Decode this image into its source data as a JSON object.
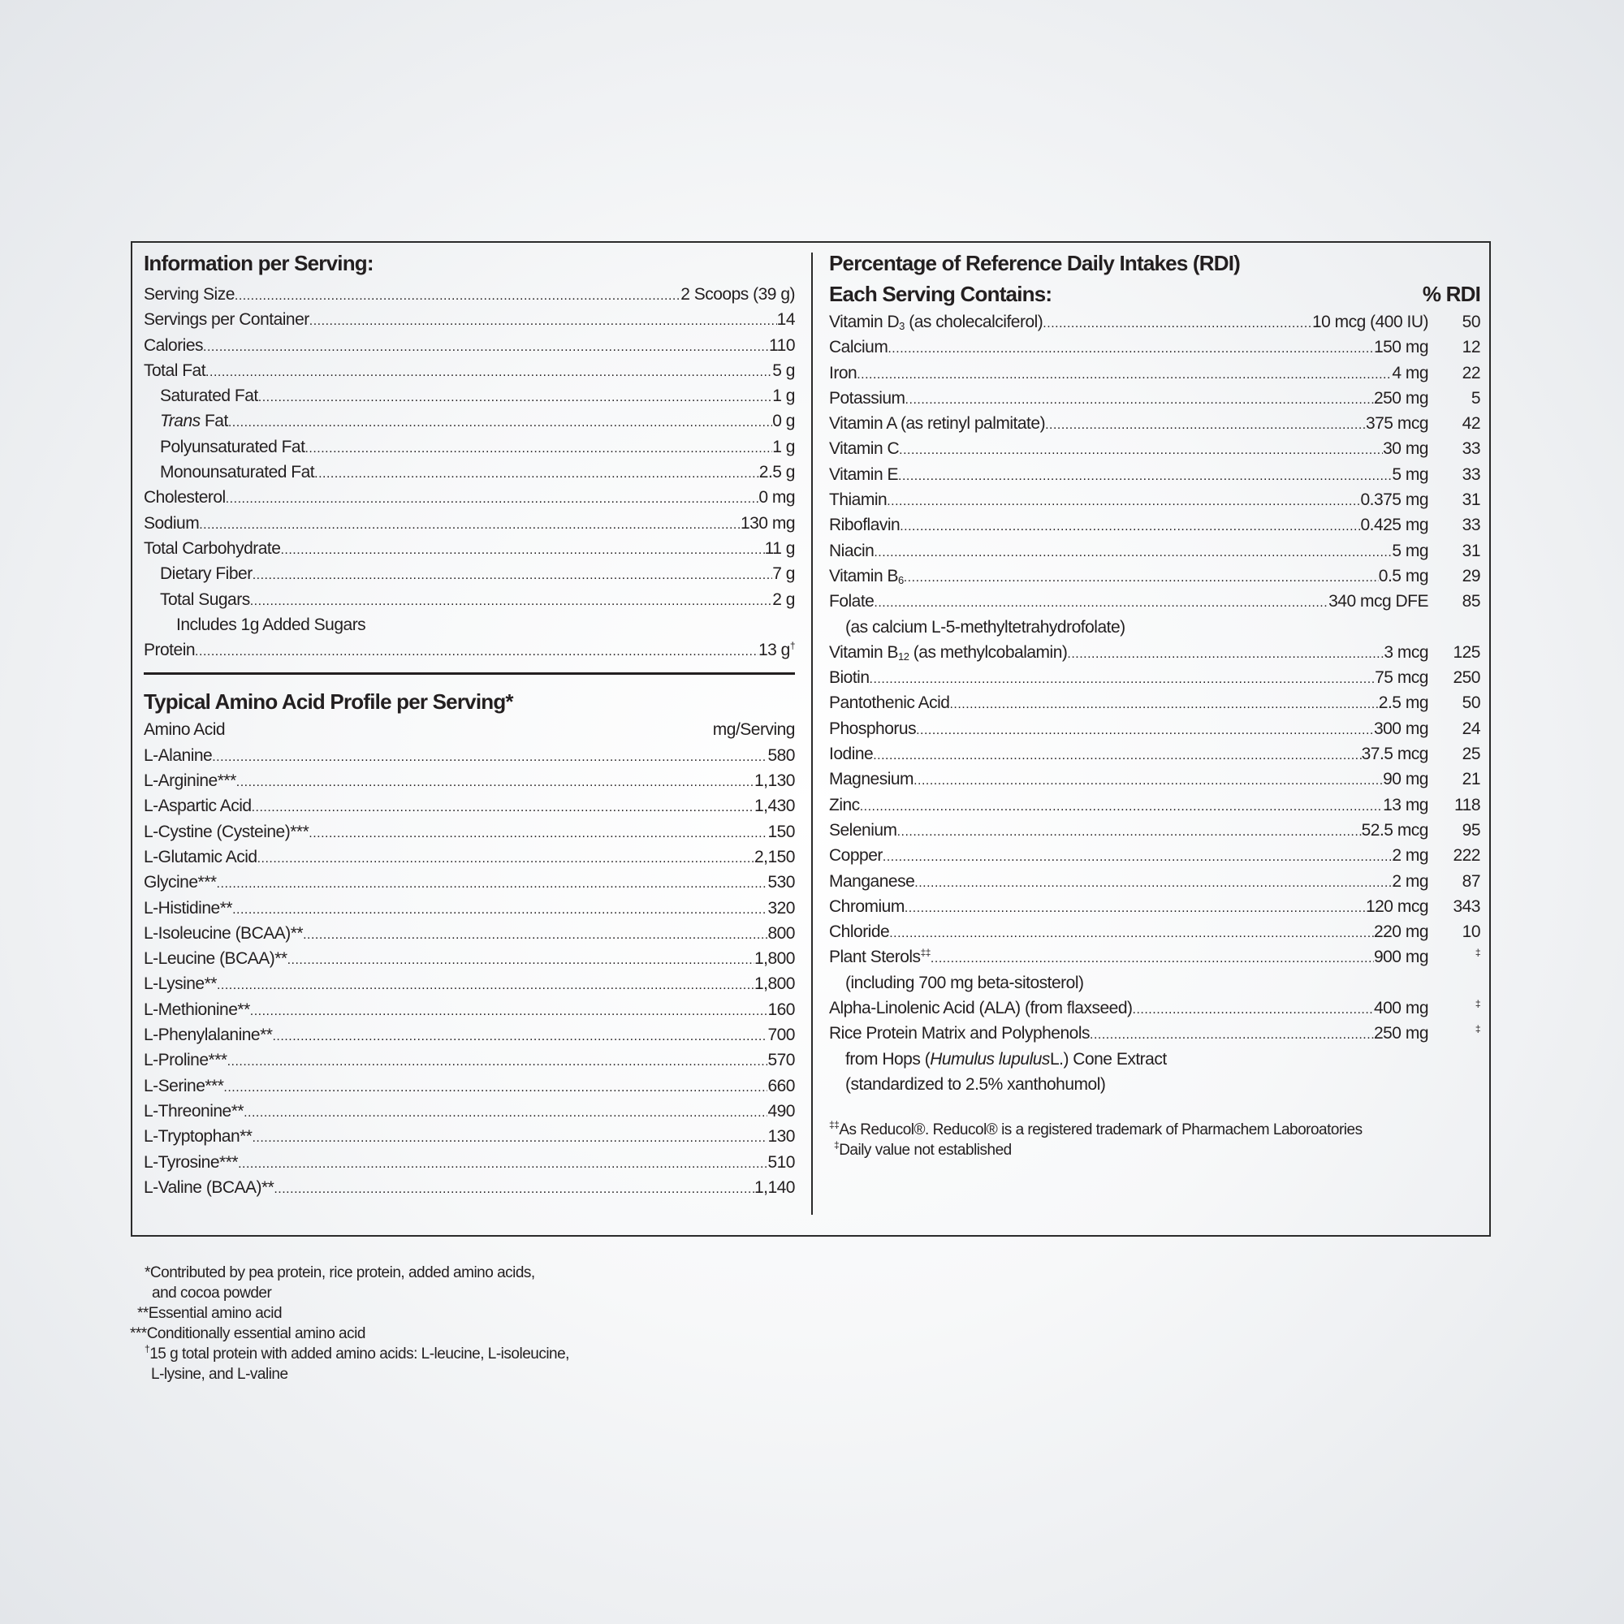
{
  "left": {
    "title": "Information per Serving:",
    "rows": [
      {
        "label": "Serving Size",
        "value": "2 Scoops (39 g)"
      },
      {
        "label": "Servings per Container",
        "value": "14"
      },
      {
        "label": "Calories",
        "value": "110"
      },
      {
        "label": "Total Fat",
        "value": "5 g"
      },
      {
        "label": "Saturated Fat",
        "value": "1 g",
        "indent": 1
      },
      {
        "italic": "Trans",
        "label": " Fat",
        "value": "0 g",
        "indent": 1
      },
      {
        "label": "Polyunsaturated Fat",
        "value": "1 g",
        "indent": 1
      },
      {
        "label": "Monounsaturated Fat",
        "value": "2.5 g",
        "indent": 1
      },
      {
        "label": "Cholesterol",
        "value": "0 mg"
      },
      {
        "label": "Sodium",
        "value": "130 mg"
      },
      {
        "label": "Total Carbohydrate",
        "value": "11 g"
      },
      {
        "label": "Dietary Fiber",
        "value": "7 g",
        "indent": 1
      },
      {
        "label": "Total Sugars",
        "value": "2 g",
        "indent": 1
      },
      {
        "note": "Includes 1g Added Sugars",
        "indent": 2
      },
      {
        "label": "Protein",
        "value": "13 g",
        "value_sup": "†"
      }
    ],
    "amino_title": "Typical Amino Acid Profile per Serving*",
    "amino_header": {
      "name": "Amino Acid",
      "unit": "mg/Serving"
    },
    "amino": [
      {
        "label": "L-Alanine",
        "value": "580"
      },
      {
        "label": "L-Arginine***",
        "value": "1,130"
      },
      {
        "label": "L-Aspartic Acid",
        "value": "1,430"
      },
      {
        "label": "L-Cystine (Cysteine)***",
        "value": "150"
      },
      {
        "label": "L-Glutamic Acid",
        "value": "2,150"
      },
      {
        "label": "Glycine***",
        "value": "530"
      },
      {
        "label": "L-Histidine**",
        "value": "320"
      },
      {
        "label": "L-Isoleucine (BCAA)**",
        "value": "800"
      },
      {
        "label": "L-Leucine (BCAA)**",
        "value": "1,800"
      },
      {
        "label": "L-Lysine**",
        "value": "1,800"
      },
      {
        "label": "L-Methionine**",
        "value": "160"
      },
      {
        "label": "L-Phenylalanine**",
        "value": "700"
      },
      {
        "label": "L-Proline***",
        "value": "570"
      },
      {
        "label": "L-Serine***",
        "value": "660"
      },
      {
        "label": "L-Threonine**",
        "value": "490"
      },
      {
        "label": "L-Tryptophan**",
        "value": "130"
      },
      {
        "label": "L-Tyrosine***",
        "value": "510"
      },
      {
        "label": "L-Valine (BCAA)**",
        "value": "1,140"
      }
    ]
  },
  "right": {
    "title": "Percentage of Reference Daily Intakes (RDI)",
    "subtitle": "Each Serving Contains:",
    "rdi_header": "% RDI",
    "rows": [
      {
        "label": "Vitamin D",
        "sub": "3",
        "label2": " (as cholecalciferol) ",
        "value": "10 mcg (400 IU)",
        "rdi": "50"
      },
      {
        "label": "Calcium",
        "value": "150 mg",
        "rdi": "12"
      },
      {
        "label": "Iron",
        "value": "4 mg",
        "rdi": "22"
      },
      {
        "label": "Potassium",
        "value": "250 mg",
        "rdi": "5"
      },
      {
        "label": "Vitamin A (as retinyl palmitate)",
        "value": "375 mcg",
        "rdi": "42"
      },
      {
        "label": "Vitamin C",
        "value": "30 mg",
        "rdi": "33"
      },
      {
        "label": "Vitamin E",
        "value": "5 mg",
        "rdi": "33"
      },
      {
        "label": "Thiamin",
        "value": "0.375 mg",
        "rdi": "31"
      },
      {
        "label": "Riboflavin",
        "value": "0.425 mg",
        "rdi": "33"
      },
      {
        "label": "Niacin",
        "value": "5 mg",
        "rdi": "31"
      },
      {
        "label": "Vitamin B",
        "sub": "6",
        "value": "0.5 mg",
        "rdi": "29"
      },
      {
        "label": "Folate",
        "value": "340 mcg DFE",
        "rdi": "85"
      },
      {
        "note": "(as calcium L-5-methyltetrahydrofolate)",
        "indent": 1
      },
      {
        "label": "Vitamin B",
        "sub": "12",
        "label2": " (as methylcobalamin)",
        "value": "3 mcg",
        "rdi": "125"
      },
      {
        "label": "Biotin",
        "value": "75 mcg",
        "rdi": "250"
      },
      {
        "label": "Pantothenic Acid",
        "value": "2.5 mg",
        "rdi": "50"
      },
      {
        "label": "Phosphorus",
        "value": "300 mg",
        "rdi": "24"
      },
      {
        "label": "Iodine",
        "value": "37.5 mcg",
        "rdi": "25"
      },
      {
        "label": "Magnesium",
        "value": "90 mg",
        "rdi": "21"
      },
      {
        "label": "Zinc",
        "value": "13 mg",
        "rdi": "118"
      },
      {
        "label": "Selenium",
        "value": "52.5 mcg",
        "rdi": "95"
      },
      {
        "label": "Copper",
        "value": "2 mg",
        "rdi": "222"
      },
      {
        "label": "Manganese",
        "value": "2 mg",
        "rdi": "87"
      },
      {
        "label": "Chromium",
        "value": "120 mcg",
        "rdi": "343"
      },
      {
        "label": "Chloride",
        "value": "220 mg",
        "rdi": "10"
      },
      {
        "label": "Plant Sterols",
        "sup": "‡‡",
        "value": "900 mg",
        "rdi_sup": "‡"
      },
      {
        "note": "(including 700 mg beta-sitosterol)",
        "indent": 1
      },
      {
        "label": "Alpha-Linolenic Acid (ALA) (from flaxseed)",
        "value": "400 mg",
        "rdi_sup": "‡"
      },
      {
        "label": "Rice Protein Matrix and Polyphenols",
        "value": "250 mg",
        "rdi_sup": "‡"
      },
      {
        "note": "from Hops (",
        "note_italic": "Humulus lupulus",
        "note2": " L.) Cone Extract",
        "indent": 1
      },
      {
        "note": "(standardized to 2.5% xanthohumol)",
        "indent": 1
      }
    ],
    "footnotes": [
      {
        "mark": "‡‡",
        "text": "As Reducol®. Reducol® is a registered trademark of Pharmachem Laboroatories"
      },
      {
        "mark": "‡",
        "text": "Daily value not established"
      }
    ]
  },
  "footnotes": [
    {
      "mark": "*",
      "text": "Contributed by pea protein, rice protein, added amino acids,",
      "cont": "and cocoa powder"
    },
    {
      "mark": "**",
      "text": "Essential amino acid"
    },
    {
      "mark": "***",
      "text": "Conditionally essential amino acid"
    },
    {
      "mark": "†",
      "text": "15 g total protein with added amino acids: L-leucine, L-isoleucine,",
      "cont": "L-lysine, and L-valine"
    }
  ]
}
